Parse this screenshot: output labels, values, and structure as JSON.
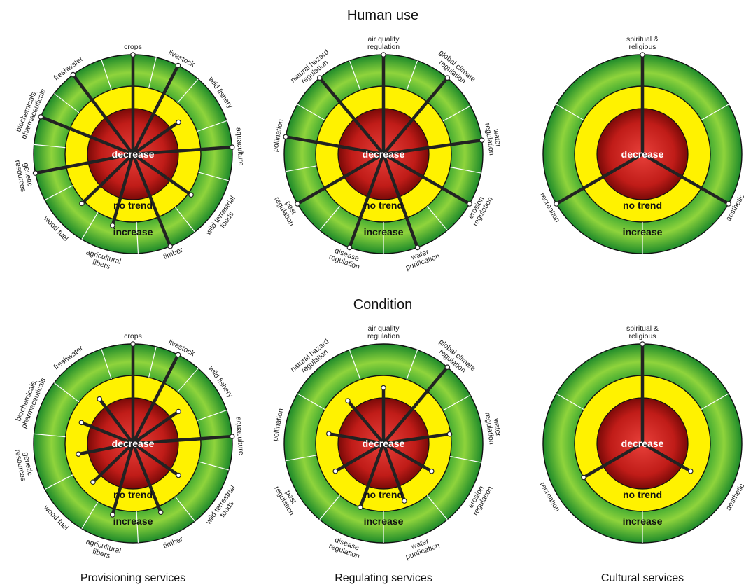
{
  "rows": [
    {
      "title": "Human use"
    },
    {
      "title": "Condition"
    }
  ],
  "columns": [
    {
      "title": "Provisioning services"
    },
    {
      "title": "Regulating services"
    },
    {
      "title": "Cultural services"
    }
  ],
  "zones": {
    "decrease": "decrease",
    "no_trend": "no trend",
    "increase": "increase"
  },
  "colors": {
    "red_inner": "#e0302a",
    "red_outer": "#7a0a08",
    "yellow": "#fff200",
    "green_inner": "#2fa02f",
    "green_mid": "#8cd038",
    "green_outer": "#1d8a2a",
    "bar": "#222222",
    "divider": "#ffffff"
  },
  "chart_data": [
    {
      "type": "radial",
      "row": "Human use",
      "group": "Provisioning services",
      "scale": {
        "min": -1,
        "max": 1,
        "zones": [
          "decrease",
          "no trend",
          "increase"
        ]
      },
      "services": [
        {
          "name": "crops",
          "value": 1.0
        },
        {
          "name": "livestock",
          "value": 1.0
        },
        {
          "name": "wild fishery",
          "value": -0.55
        },
        {
          "name": "aquaculture",
          "value": 1.0
        },
        {
          "name": "wild terrestrial foods",
          "value": 0.1
        },
        {
          "name": "timber",
          "value": 1.0
        },
        {
          "name": "agricultural fibers",
          "value": 0.2
        },
        {
          "name": "wood fuel",
          "value": 0.1
        },
        {
          "name": "genetic resources",
          "value": 1.0
        },
        {
          "name": "biochemicals, pharmaceuticals",
          "value": 1.0
        },
        {
          "name": "freshwater",
          "value": 1.0
        }
      ]
    },
    {
      "type": "radial",
      "row": "Human use",
      "group": "Regulating services",
      "scale": {
        "min": -1,
        "max": 1,
        "zones": [
          "decrease",
          "no trend",
          "increase"
        ]
      },
      "services": [
        {
          "name": "air quality regulation",
          "value": 1.0
        },
        {
          "name": "global climate regulation",
          "value": 1.0
        },
        {
          "name": "water regulation",
          "value": 1.0
        },
        {
          "name": "erosion regulation",
          "value": 1.0
        },
        {
          "name": "water purification",
          "value": 1.0
        },
        {
          "name": "disease regulation",
          "value": 1.0
        },
        {
          "name": "pest regulation",
          "value": 1.0
        },
        {
          "name": "pollination",
          "value": 1.0
        },
        {
          "name": "natural hazard regulation",
          "value": 1.0
        }
      ]
    },
    {
      "type": "radial",
      "row": "Human use",
      "group": "Cultural services",
      "scale": {
        "min": -1,
        "max": 1,
        "zones": [
          "decrease",
          "no trend",
          "increase"
        ]
      },
      "services": [
        {
          "name": "spiritual & religious",
          "value": 1.0
        },
        {
          "name": "aesthetic",
          "value": 1.0
        },
        {
          "name": "recreation",
          "value": 1.0
        }
      ]
    },
    {
      "type": "radial",
      "row": "Condition",
      "group": "Provisioning services",
      "scale": {
        "min": -1,
        "max": 1,
        "zones": [
          "decrease",
          "no trend",
          "increase"
        ]
      },
      "services": [
        {
          "name": "crops",
          "value": 1.0
        },
        {
          "name": "livestock",
          "value": 1.0
        },
        {
          "name": "wild fishery",
          "value": -0.55
        },
        {
          "name": "aquaculture",
          "value": 1.0
        },
        {
          "name": "wild terrestrial foods",
          "value": -0.55
        },
        {
          "name": "timber",
          "value": 0.2
        },
        {
          "name": "agricultural fibers",
          "value": 0.2
        },
        {
          "name": "wood fuel",
          "value": -0.55
        },
        {
          "name": "genetic resources",
          "value": -0.55
        },
        {
          "name": "biochemicals, pharmaceuticals",
          "value": -0.55
        },
        {
          "name": "freshwater",
          "value": -0.55
        }
      ]
    },
    {
      "type": "radial",
      "row": "Condition",
      "group": "Regulating services",
      "scale": {
        "min": -1,
        "max": 1,
        "zones": [
          "decrease",
          "no trend",
          "increase"
        ]
      },
      "services": [
        {
          "name": "air quality regulation",
          "value": -0.55
        },
        {
          "name": "global climate regulation",
          "value": 1.0
        },
        {
          "name": "water regulation",
          "value": -0.05
        },
        {
          "name": "erosion regulation",
          "value": -0.55
        },
        {
          "name": "water purification",
          "value": -0.3
        },
        {
          "name": "disease regulation",
          "value": 0.0
        },
        {
          "name": "pest regulation",
          "value": -0.55
        },
        {
          "name": "pollination",
          "value": -0.55
        },
        {
          "name": "natural hazard regulation",
          "value": -0.55
        }
      ]
    },
    {
      "type": "radial",
      "row": "Condition",
      "group": "Cultural services",
      "scale": {
        "min": -1,
        "max": 1,
        "zones": [
          "decrease",
          "no trend",
          "increase"
        ]
      },
      "services": [
        {
          "name": "spiritual & religious",
          "value": 1.0
        },
        {
          "name": "aesthetic",
          "value": -0.55
        },
        {
          "name": "recreation",
          "value": 0.0
        }
      ]
    }
  ]
}
